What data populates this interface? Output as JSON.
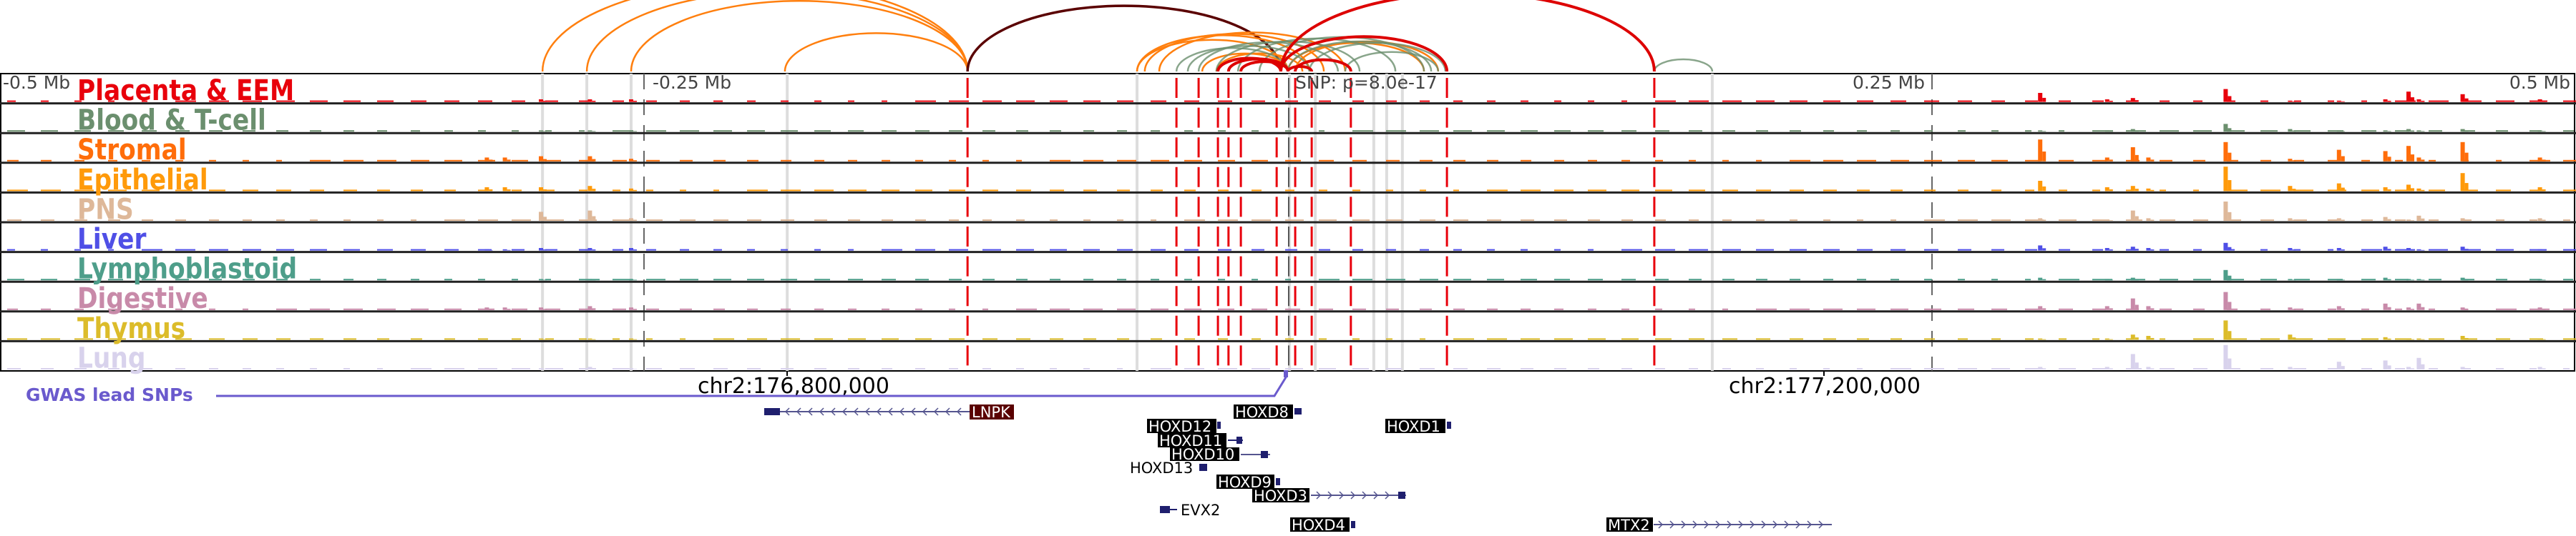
{
  "axis": {
    "ticks": [
      {
        "label": "-0.5 Mb",
        "offset": -0.5
      },
      {
        "label": "-0.25 Mb",
        "offset": -0.25
      },
      {
        "label": "0.25 Mb",
        "offset": 0.25
      },
      {
        "label": "0.5 Mb",
        "offset": 0.5
      }
    ],
    "snp_label": "SNP: p=8.0e-17",
    "chr_labels": [
      "chr2:176,800,000",
      "chr2:177,200,000"
    ],
    "gwas_label": "GWAS lead SNPs"
  },
  "colors": {
    "red_line": "#e8000b",
    "grey_line": "#dddddd",
    "arc_orange": "#ff7f0e",
    "arc_darkred": "#5a0000",
    "arc_red": "#dd0000",
    "arc_green": "#6b8f6e",
    "gwas": "#6a5acd",
    "gene": "#1f1f6e"
  },
  "tracks": [
    {
      "name": "Placenta & EEM",
      "color": "#e8000b",
      "peaks": [
        0,
        0,
        0.1,
        0.1,
        0.1,
        0.35,
        0.1,
        0.15,
        0,
        0.5,
        0.05,
        0.05,
        0.1,
        0.4,
        0.1,
        0.3,
        0.1
      ]
    },
    {
      "name": "Blood & T-cell",
      "color": "#6b8f6e",
      "peaks": [
        0,
        0,
        0.05,
        0.05,
        0.05,
        0.05,
        0.05,
        0.1,
        0,
        0.3,
        0.1,
        0.05,
        0.05,
        0.1,
        0.05,
        0.1,
        0.05
      ]
    },
    {
      "name": "Stromal",
      "color": "#ff6d0a",
      "peaks": [
        0.15,
        0.15,
        0.2,
        0.2,
        0.1,
        0.85,
        0.15,
        0.55,
        0.15,
        0.75,
        0.1,
        0.45,
        0.4,
        0.6,
        0.15,
        0.75,
        0.15
      ]
    },
    {
      "name": "Epithelial",
      "color": "#ff9a0a",
      "peaks": [
        0.15,
        0.15,
        0.15,
        0.2,
        0.1,
        0.4,
        0.15,
        0.2,
        0.1,
        0.95,
        0.2,
        0.3,
        0.15,
        0.25,
        0.1,
        0.7,
        0.15
      ]
    },
    {
      "name": "PNS",
      "color": "#deb899",
      "peaks": [
        0,
        0,
        0.35,
        0.4,
        0.1,
        0.1,
        0.05,
        0.4,
        0.1,
        0.75,
        0.1,
        0.1,
        0.15,
        0.05,
        0.2,
        0.1,
        0.1
      ]
    },
    {
      "name": "Liver",
      "color": "#4f4fe6",
      "peaks": [
        0.05,
        0.05,
        0.1,
        0.1,
        0.1,
        0.2,
        0.1,
        0.15,
        0.1,
        0.3,
        0.1,
        0.1,
        0.15,
        0.1,
        0.05,
        0.15,
        0.05
      ]
    },
    {
      "name": "Lymphoblastoid",
      "color": "#4e9e8a",
      "peaks": [
        0,
        0,
        0.05,
        0.05,
        0.05,
        0.1,
        0.05,
        0.1,
        0,
        0.4,
        0.05,
        0.05,
        0.1,
        0.05,
        0.05,
        0.1,
        0.05
      ]
    },
    {
      "name": "Digestive",
      "color": "#c88aa9",
      "peaks": [
        0.1,
        0.1,
        0.1,
        0.15,
        0.1,
        0.15,
        0.15,
        0.45,
        0.15,
        0.7,
        0.1,
        0.15,
        0.25,
        0.1,
        0.25,
        0.1,
        0.1
      ]
    },
    {
      "name": "Thymus",
      "color": "#dcbc2a",
      "peaks": [
        0,
        0,
        0.05,
        0.05,
        0.05,
        0.05,
        0.05,
        0.2,
        0.15,
        0.75,
        0.2,
        0.05,
        0.1,
        0.05,
        0.05,
        0.15,
        0.05
      ]
    },
    {
      "name": "Lung",
      "color": "#d8d2ec",
      "peaks": [
        0,
        0,
        0.05,
        0.1,
        0.05,
        0.1,
        0.1,
        0.6,
        0.1,
        0.95,
        0.1,
        0.3,
        0.35,
        0.1,
        0.45,
        0.1,
        0.1
      ]
    }
  ],
  "peak_positions": [
    -0.311,
    -0.304,
    -0.29,
    -0.271,
    -0.255,
    0.292,
    0.318,
    0.328,
    0.334,
    0.364,
    0.389,
    0.408,
    0.426,
    0.435,
    0.439,
    0.456,
    0.486
  ],
  "red_lines": [
    -0.1244,
    -0.0433,
    -0.0347,
    -0.0272,
    -0.0231,
    -0.0183,
    -0.0044,
    0.0028,
    0.0092,
    0.0244,
    0.0617,
    0.1422
  ],
  "grey_lines": [
    -0.2894,
    -0.2722,
    -0.255,
    -0.1944,
    -0.0586,
    0.0006,
    0.0106,
    0.0333,
    0.0383,
    0.0444,
    0.1647
  ],
  "arcs": [
    {
      "a": -0.2894,
      "b": -0.1244,
      "c": "arc_orange"
    },
    {
      "a": -0.2722,
      "b": -0.1244,
      "c": "arc_orange"
    },
    {
      "a": -0.255,
      "b": -0.1244,
      "c": "arc_orange"
    },
    {
      "a": -0.1953,
      "b": -0.1244,
      "c": "arc_orange"
    },
    {
      "a": -0.1244,
      "b": -0.0028,
      "c": "arc_darkred"
    },
    {
      "a": -0.0586,
      "b": 0.0,
      "c": "arc_orange"
    },
    {
      "a": -0.0586,
      "b": 0.0083,
      "c": "arc_orange"
    },
    {
      "a": -0.0556,
      "b": 0.0139,
      "c": "arc_orange"
    },
    {
      "a": -0.05,
      "b": 0.0222,
      "c": "arc_orange"
    },
    {
      "a": -0.0333,
      "b": 0.0,
      "c": "arc_orange"
    },
    {
      "a": -0.0278,
      "b": 0.0056,
      "c": "arc_orange"
    },
    {
      "a": 0.0,
      "b": 0.0528,
      "c": "arc_orange"
    },
    {
      "a": 0.0028,
      "b": 0.0583,
      "c": "arc_orange"
    },
    {
      "a": -0.0433,
      "b": 0.0,
      "c": "arc_green"
    },
    {
      "a": -0.0389,
      "b": 0.0083,
      "c": "arc_green"
    },
    {
      "a": -0.0347,
      "b": 0.0194,
      "c": "arc_green"
    },
    {
      "a": -0.0278,
      "b": 0.0278,
      "c": "arc_green"
    },
    {
      "a": -0.0194,
      "b": 0.0417,
      "c": "arc_green"
    },
    {
      "a": -0.0111,
      "b": 0.0528,
      "c": "arc_green"
    },
    {
      "a": 0.0,
      "b": 0.0556,
      "c": "arc_green"
    },
    {
      "a": 0.0083,
      "b": 0.0611,
      "c": "arc_green"
    },
    {
      "a": 0.0222,
      "b": 0.0583,
      "c": "arc_green"
    },
    {
      "a": 0.1422,
      "b": 0.1647,
      "c": "arc_green"
    },
    {
      "a": -0.0272,
      "b": -0.0028,
      "c": "arc_red"
    },
    {
      "a": -0.0231,
      "b": 0.0,
      "c": "arc_red"
    },
    {
      "a": -0.0183,
      "b": 0.0,
      "c": "arc_red"
    },
    {
      "a": 0.0,
      "b": 0.0092,
      "c": "arc_red"
    },
    {
      "a": 0.0028,
      "b": 0.0244,
      "c": "arc_red"
    },
    {
      "a": -0.0028,
      "b": 0.0617,
      "c": "arc_red"
    },
    {
      "a": -0.0028,
      "b": 0.1422,
      "c": "arc_red"
    }
  ],
  "genes": {
    "lnpk": "LNPK",
    "hoxd8": "HOXD8",
    "hoxd12": "HOXD12",
    "hoxd1": "HOXD1",
    "hoxd11": "HOXD11",
    "hoxd10": "HOXD10",
    "hoxd13": "HOXD13",
    "hoxd9": "HOXD9",
    "hoxd3": "HOXD3",
    "evx2": "EVX2",
    "hoxd4": "HOXD4",
    "mtx2": "MTX2"
  }
}
